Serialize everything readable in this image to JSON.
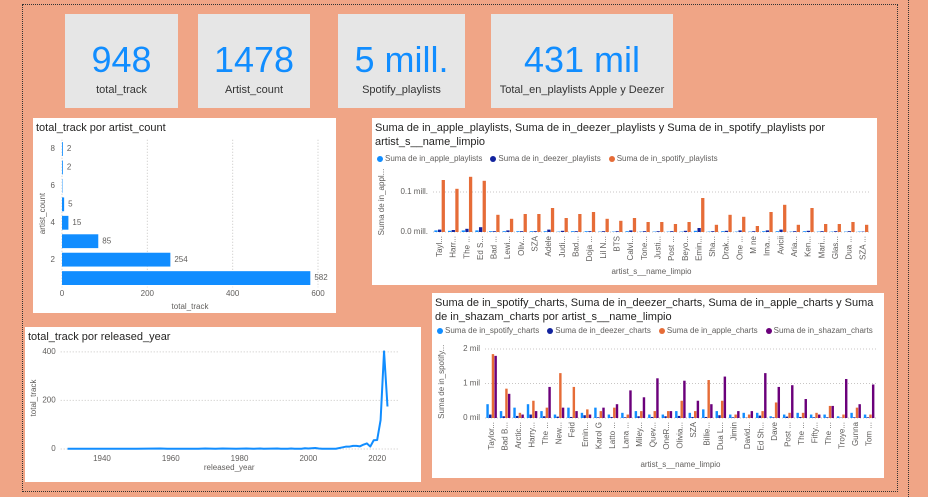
{
  "cards": [
    {
      "value": 948,
      "label": "total_track"
    },
    {
      "value": 1478,
      "label": "Artist_count"
    },
    {
      "value": "5 mill.",
      "label": "Spotify_playlists"
    },
    {
      "value": "431 mil",
      "label": "Total_en_playlists Apple y Deezer"
    }
  ],
  "chart_data": [
    {
      "type": "bar",
      "orientation": "horizontal",
      "title": "total_track por artist_count",
      "xlabel": "total_track",
      "ylabel": "artist_count",
      "y": [
        1,
        2,
        3,
        4,
        5,
        6,
        7,
        8
      ],
      "values": [
        582,
        254,
        85,
        15,
        5,
        1,
        2,
        2
      ],
      "value_labels": [
        "582",
        "254",
        "85",
        "15",
        "5",
        null,
        "2",
        "2"
      ],
      "color": "#118dff",
      "xlim": [
        0,
        600
      ],
      "xticks": [
        0,
        200,
        400,
        600
      ],
      "ylim": [
        0.5,
        8.5
      ],
      "yticks": [
        2,
        4,
        6,
        8
      ],
      "grid": true
    },
    {
      "type": "line",
      "title": "total_track por released_year",
      "xlabel": "released_year",
      "ylabel": "total_track",
      "x": [
        1930,
        1942,
        1946,
        1950,
        1957,
        1959,
        1963,
        1968,
        1970,
        1973,
        1975,
        1979,
        1982,
        1984,
        1986,
        1987,
        1991,
        1992,
        1994,
        1995,
        1996,
        1997,
        1998,
        1999,
        2000,
        2002,
        2003,
        2004,
        2005,
        2007,
        2008,
        2010,
        2011,
        2012,
        2013,
        2014,
        2015,
        2016,
        2017,
        2018,
        2019,
        2020,
        2021,
        2022,
        2023
      ],
      "values": [
        1,
        1,
        1,
        1,
        2,
        1,
        1,
        1,
        2,
        1,
        2,
        1,
        2,
        1,
        2,
        1,
        2,
        1,
        1,
        2,
        1,
        1,
        1,
        3,
        2,
        4,
        2,
        1,
        1,
        1,
        1,
        7,
        10,
        10,
        13,
        13,
        11,
        18,
        23,
        10,
        36,
        37,
        119,
        402,
        175
      ],
      "color": "#118dff",
      "xlim": [
        1928,
        2026
      ],
      "xticks": [
        1940,
        1960,
        1980,
        2000,
        2020
      ],
      "ylim": [
        0,
        420
      ],
      "yticks": [
        0,
        200,
        400
      ],
      "grid": true
    },
    {
      "type": "bar",
      "orientation": "vertical",
      "title": "Suma de in_apple_playlists, Suma de in_deezer_playlists y Suma de in_spotify_playlists por artist_s__name_limpio",
      "xlabel": "artist_s__name_limpio",
      "ylabel": "Suma de in_appl...",
      "categories": [
        "Tayl...",
        "Harr...",
        "The ...",
        "Ed S...",
        "Bad ...",
        "Lewi...",
        "Oliv...",
        "SZA",
        "Adele",
        "Judi...",
        "Bad...",
        "Doja ...",
        "Lil N...",
        "BTS",
        "Calvi...",
        "Tone...",
        "Justi...",
        "Post ...",
        "Beyo...",
        "Emin...",
        "Sha...",
        "Drak...",
        "One ...",
        "M ne",
        "Ima...",
        "Avicii",
        "Aria...",
        "Ken...",
        "Mari...",
        "Glas...",
        "Dua ...",
        "SZA ..."
      ],
      "series": [
        {
          "name": "Suma de in_apple_playlists",
          "color": "#118dff",
          "values": [
            0.004,
            0.003,
            0.004,
            0.004,
            0.002,
            0.002,
            0.002,
            0.002,
            0.002,
            0.001,
            0.002,
            0.002,
            0.001,
            0.001,
            0.002,
            0.001,
            0.001,
            0.001,
            0.001,
            0.003,
            0.001,
            0.002,
            0.001,
            0.001,
            0.002,
            0.002,
            0.001,
            0.002,
            0.001,
            0.001,
            0.001,
            0.001
          ]
        },
        {
          "name": "Suma de in_deezer_playlists",
          "color": "#12239e",
          "values": [
            0.006,
            0.005,
            0.008,
            0.012,
            0.002,
            0.004,
            0.002,
            0.002,
            0.006,
            0.003,
            0.002,
            0.002,
            0.002,
            0.002,
            0.004,
            0.002,
            0.002,
            0.002,
            0.003,
            0.01,
            0.002,
            0.003,
            0.004,
            0.002,
            0.004,
            0.006,
            0.002,
            0.003,
            0.002,
            0.002,
            0.002,
            0.001
          ]
        },
        {
          "name": "Suma de in_spotify_playlists",
          "color": "#e66c37",
          "values": [
            0.13,
            0.108,
            0.138,
            0.128,
            0.043,
            0.033,
            0.045,
            0.045,
            0.06,
            0.035,
            0.045,
            0.05,
            0.033,
            0.028,
            0.035,
            0.025,
            0.025,
            0.02,
            0.025,
            0.085,
            0.018,
            0.043,
            0.038,
            0.015,
            0.05,
            0.068,
            0.018,
            0.06,
            0.02,
            0.02,
            0.025,
            0.018
          ]
        }
      ],
      "ylim": [
        0,
        0.15
      ],
      "yticks": [
        {
          "value": 0,
          "label": "0.0 mill."
        },
        {
          "value": 0.1,
          "label": "0.1 mill."
        }
      ],
      "grid": true
    },
    {
      "type": "bar",
      "orientation": "vertical",
      "title": "Suma de in_spotify_charts, Suma de in_deezer_charts, Suma de in_apple_charts y Suma de in_shazam_charts por artist_s__name_limpio",
      "xlabel": "artist_s__name_limpio",
      "ylabel": "Suma de in_spotify...",
      "categories": [
        "Taylor...",
        "Bad B...",
        "Arctic...",
        "Harry...",
        "The ...",
        "New...",
        "Feid",
        "Emin...",
        "Karol G",
        "Latto ...",
        "Lana ...",
        "Miley...",
        "Quev...",
        "OneR...",
        "Olivia...",
        "SZA",
        "Billie...",
        "Dua L...",
        "Jimin",
        "David...",
        "Ed Sh...",
        "Dave",
        "Post ...",
        "The ...",
        "Fifty...",
        "The ...",
        "Troye...",
        "Gunna",
        "Tom ..."
      ],
      "series": [
        {
          "name": "Suma de in_spotify_charts",
          "color": "#118dff",
          "values": [
            400,
            200,
            300,
            400,
            200,
            100,
            300,
            150,
            300,
            100,
            150,
            200,
            100,
            100,
            200,
            150,
            250,
            200,
            100,
            150,
            150,
            50,
            100,
            150,
            100,
            100,
            50,
            150,
            100
          ]
        },
        {
          "name": "Suma de in_deezer_charts",
          "color": "#12239e",
          "values": [
            100,
            50,
            60,
            100,
            50,
            40,
            30,
            80,
            20,
            30,
            20,
            50,
            30,
            50,
            60,
            30,
            30,
            80,
            20,
            10,
            70,
            20,
            40,
            30,
            20,
            20,
            10,
            20,
            20
          ]
        },
        {
          "name": "Suma de in_apple_charts",
          "color": "#e66c37",
          "values": [
            1850,
            850,
            150,
            500,
            300,
            1300,
            900,
            250,
            200,
            300,
            100,
            200,
            200,
            200,
            500,
            200,
            1100,
            500,
            100,
            100,
            200,
            450,
            150,
            150,
            150,
            350,
            100,
            300,
            100
          ]
        },
        {
          "name": "Suma de in_shazam_charts",
          "color": "#6b007b",
          "values": [
            1800,
            700,
            100,
            200,
            900,
            300,
            200,
            100,
            300,
            400,
            800,
            600,
            1150,
            200,
            1080,
            500,
            400,
            1200,
            200,
            200,
            1300,
            900,
            950,
            550,
            100,
            350,
            1130,
            400,
            970
          ]
        }
      ],
      "ylim": [
        0,
        2100
      ],
      "yticks": [
        {
          "value": 0,
          "label": "0 mil"
        },
        {
          "value": 1000,
          "label": "1 mil"
        },
        {
          "value": 2000,
          "label": "2 mil"
        }
      ],
      "grid": true
    }
  ]
}
